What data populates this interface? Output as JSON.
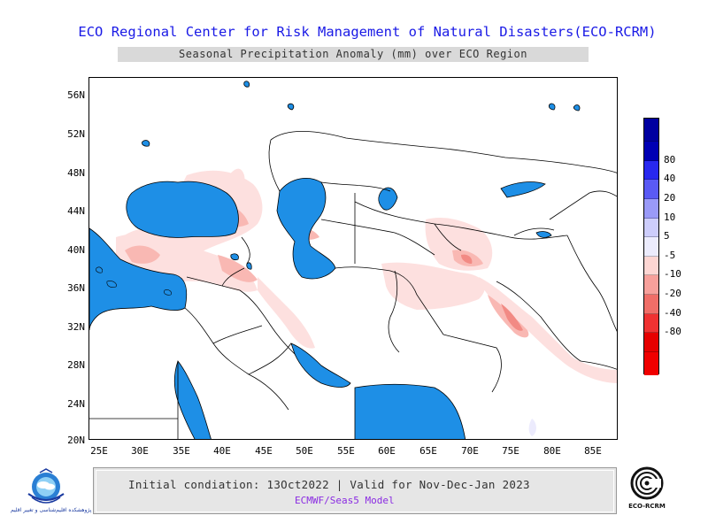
{
  "header": {
    "title": "ECO Regional Center for Risk Management of Natural Disasters(ECO-RCRM)",
    "subtitle": "Seasonal Precipitation Anomaly (mm) over ECO Region"
  },
  "map": {
    "lat_labels": [
      "56N",
      "52N",
      "48N",
      "44N",
      "40N",
      "36N",
      "32N",
      "28N",
      "24N",
      "20N"
    ],
    "lon_labels": [
      "25E",
      "30E",
      "35E",
      "40E",
      "45E",
      "50E",
      "55E",
      "60E",
      "65E",
      "70E",
      "75E",
      "80E",
      "85E"
    ],
    "lon_range": [
      24,
      88
    ],
    "lat_range": [
      20,
      58
    ],
    "water_color": "#1e8fe6",
    "border_color": "#000000"
  },
  "legend": {
    "levels": [
      {
        "label": "80",
        "color": "#0000b4"
      },
      {
        "label": "40",
        "color": "#2828ef"
      },
      {
        "label": "20",
        "color": "#5a5af5"
      },
      {
        "label": "10",
        "color": "#9a9af8"
      },
      {
        "label": "5",
        "color": "#cdcdfb"
      },
      {
        "label": "-5",
        "color": "#ececfd"
      },
      {
        "label": "-10",
        "color": "#fdd6d3"
      },
      {
        "label": "-20",
        "color": "#f7a09b"
      },
      {
        "label": "-40",
        "color": "#f06e68"
      },
      {
        "label": "-80",
        "color": "#f03232"
      },
      {
        "label": "",
        "color": "#e60000"
      }
    ],
    "tail_top_color": "#0000a0",
    "tail_bottom_color": "#f00000"
  },
  "footer": {
    "line1": "Initial condiation: 13Oct2022 | Valid for Nov-Dec-Jan 2023",
    "line2": "ECMWF/Seas5 Model"
  },
  "logos": {
    "left_caption": "پژوهشکده اقلیم‌شناسی و تغییر اقلیم",
    "right_caption": "ECO-RCRM"
  }
}
